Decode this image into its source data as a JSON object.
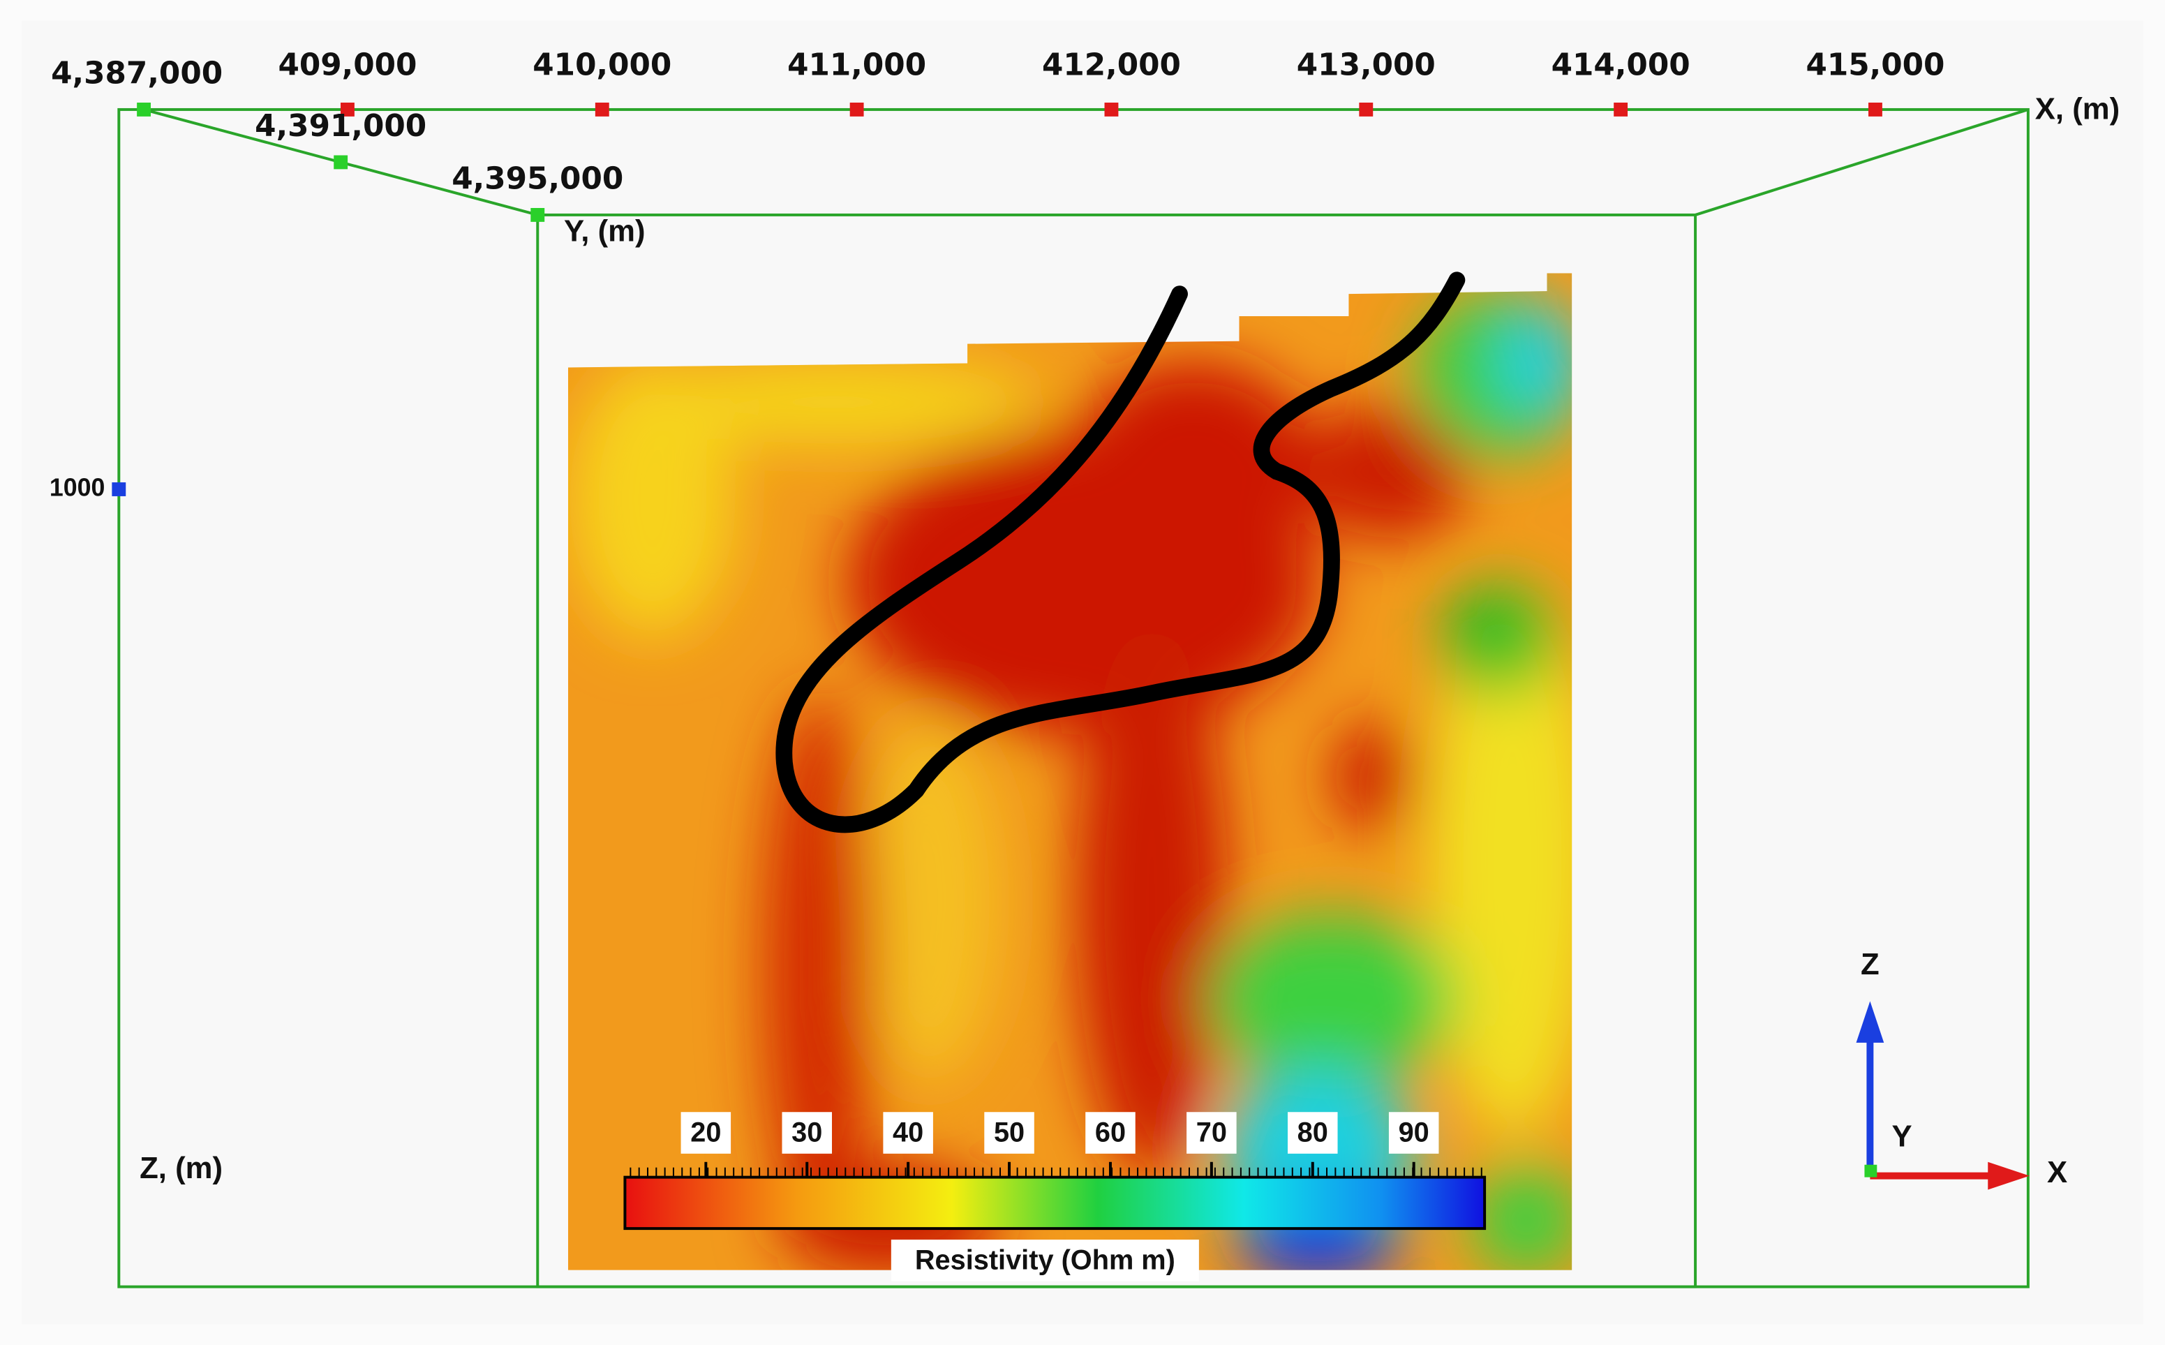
{
  "axes": {
    "x": {
      "label": "X, (m)",
      "lim": [
        408200,
        415600
      ],
      "ticks": [
        {
          "value": 409000,
          "label": "409,000"
        },
        {
          "value": 410000,
          "label": "410,000"
        },
        {
          "value": 411000,
          "label": "411,000"
        },
        {
          "value": 412000,
          "label": "412,000"
        },
        {
          "value": 413000,
          "label": "413,000"
        },
        {
          "value": 414000,
          "label": "414,000"
        },
        {
          "value": 415000,
          "label": "415,000"
        }
      ]
    },
    "y": {
      "label": "Y, (m)",
      "lim": [
        4387000,
        4395000
      ],
      "ticks": [
        {
          "value": 4387000,
          "label": "4,387,000"
        },
        {
          "value": 4391000,
          "label": "4,391,000"
        },
        {
          "value": 4395000,
          "label": "4,395,000"
        }
      ]
    },
    "z": {
      "label": "Z, (m)",
      "lim": [
        2000,
        -1100
      ],
      "ticks": [
        1000
      ]
    }
  },
  "colorbar": {
    "title": "Resistivity (Ohm m)",
    "lim": [
      12,
      97
    ],
    "ticks": [
      20,
      30,
      40,
      50,
      60,
      70,
      80,
      90
    ]
  },
  "triad": {
    "z": "Z",
    "y": "Y",
    "x": "X"
  }
}
